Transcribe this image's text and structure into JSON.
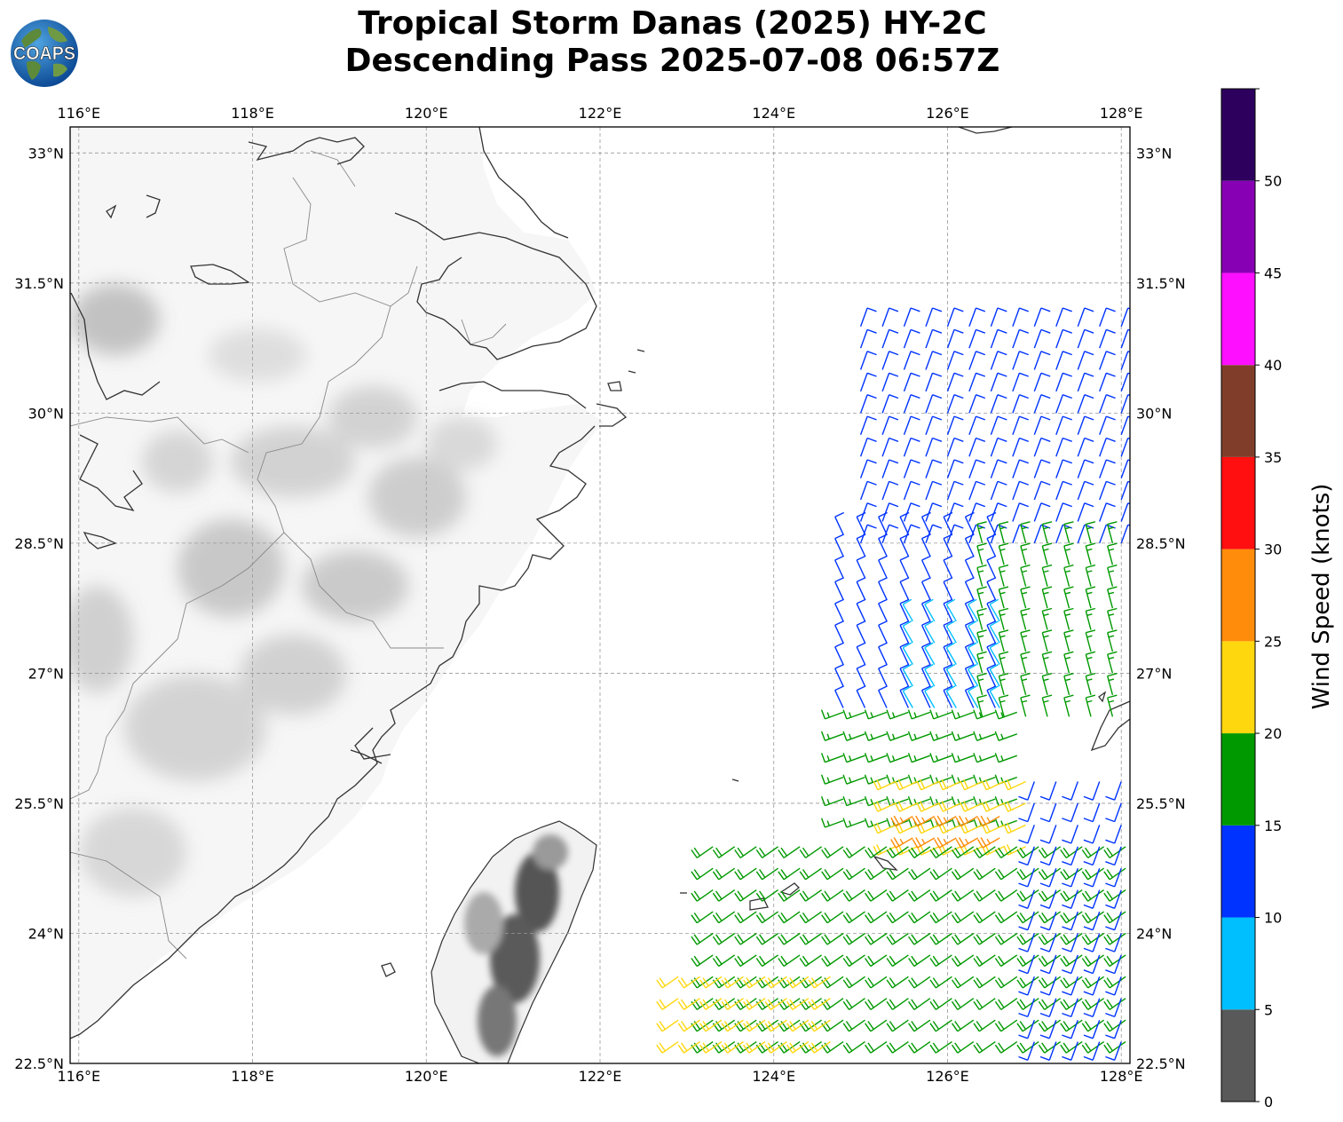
{
  "title": {
    "line1": "Tropical Storm Danas (2025) HY-2C",
    "line2": "Descending Pass 2025-07-08 06:57Z"
  },
  "logo": {
    "text": "COAPS",
    "icon": "globe-logo-icon"
  },
  "map": {
    "lon_range": [
      115.9,
      128.1
    ],
    "lat_range": [
      22.5,
      33.3
    ],
    "lon_ticks": [
      {
        "value": 116,
        "label": "116°E"
      },
      {
        "value": 118,
        "label": "118°E"
      },
      {
        "value": 120,
        "label": "120°E"
      },
      {
        "value": 122,
        "label": "122°E"
      },
      {
        "value": 124,
        "label": "124°E"
      },
      {
        "value": 126,
        "label": "126°E"
      },
      {
        "value": 128,
        "label": "128°E"
      }
    ],
    "lat_ticks": [
      {
        "value": 22.5,
        "label": "22.5°N"
      },
      {
        "value": 24,
        "label": "24°N"
      },
      {
        "value": 25.5,
        "label": "25.5°N"
      },
      {
        "value": 27,
        "label": "27°N"
      },
      {
        "value": 28.5,
        "label": "28.5°N"
      },
      {
        "value": 30,
        "label": "30°N"
      },
      {
        "value": 31.5,
        "label": "31.5°N"
      },
      {
        "value": 33,
        "label": "33°N"
      }
    ],
    "gridlines": "dashed",
    "coastline_color": "#333333",
    "border_color": "#888888",
    "terrain": "grayscale shaded relief"
  },
  "colorbar": {
    "label": "Wind Speed (knots)",
    "ticks": [
      "0",
      "5",
      "10",
      "15",
      "20",
      "25",
      "30",
      "35",
      "40",
      "45",
      "50"
    ],
    "bins": [
      {
        "from": 0,
        "to": 5,
        "color": "#595959"
      },
      {
        "from": 5,
        "to": 10,
        "color": "#00BFFF"
      },
      {
        "from": 10,
        "to": 15,
        "color": "#0033FF"
      },
      {
        "from": 15,
        "to": 20,
        "color": "#009900"
      },
      {
        "from": 20,
        "to": 25,
        "color": "#FFD70F"
      },
      {
        "from": 25,
        "to": 30,
        "color": "#FF8C0A"
      },
      {
        "from": 30,
        "to": 35,
        "color": "#FF0F0F"
      },
      {
        "from": 35,
        "to": 40,
        "color": "#803E2A"
      },
      {
        "from": 40,
        "to": 45,
        "color": "#FF0FFF"
      },
      {
        "from": 45,
        "to": 50,
        "color": "#8800B3"
      },
      {
        "from": 50,
        "to": 55,
        "color": "#2E005E"
      }
    ]
  },
  "wind_regions": [
    {
      "lon": [
        125.0,
        128.1
      ],
      "lat": [
        28.5,
        31.2
      ],
      "speed": 12,
      "dir_from": 20
    },
    {
      "lon": [
        124.8,
        126.6
      ],
      "lat": [
        26.6,
        28.6
      ],
      "speed": 12,
      "dir_from": 335
    },
    {
      "lon": [
        125.6,
        126.8
      ],
      "lat": [
        26.6,
        27.6
      ],
      "speed": 8,
      "dir_from": 330
    },
    {
      "lon": [
        126.4,
        128.1
      ],
      "lat": [
        26.5,
        28.5
      ],
      "speed": 17,
      "dir_from": 345
    },
    {
      "lon": [
        124.8,
        127.0
      ],
      "lat": [
        25.3,
        26.6
      ],
      "speed": 17,
      "dir_from": 250
    },
    {
      "lon": [
        125.4,
        126.9
      ],
      "lat": [
        25.0,
        25.8
      ],
      "speed": 22,
      "dir_from": 245
    },
    {
      "lon": [
        125.6,
        126.6
      ],
      "lat": [
        25.1,
        25.5
      ],
      "speed": 26,
      "dir_from": 240
    },
    {
      "lon": [
        123.3,
        128.1
      ],
      "lat": [
        22.5,
        25.2
      ],
      "speed": 18,
      "dir_from": 235
    },
    {
      "lon": [
        122.9,
        124.8
      ],
      "lat": [
        22.5,
        23.6
      ],
      "speed": 22,
      "dir_from": 235
    },
    {
      "lon": [
        127.0,
        128.1
      ],
      "lat": [
        22.5,
        25.8
      ],
      "speed": 12,
      "dir_from": 200
    }
  ]
}
